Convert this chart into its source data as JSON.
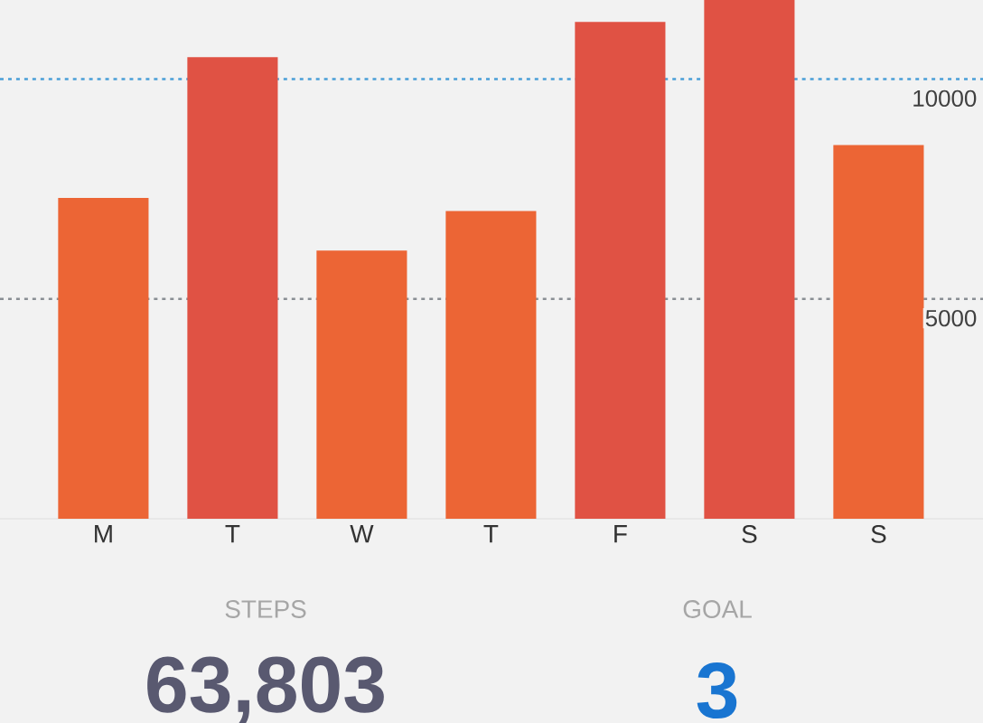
{
  "chart_data": {
    "type": "bar",
    "categories": [
      "M",
      "T",
      "W",
      "T",
      "F",
      "S",
      "S"
    ],
    "values": [
      7300,
      10500,
      6100,
      7000,
      11300,
      11800,
      8500
    ],
    "colors": [
      "#ec6535",
      "#e05244",
      "#ec6535",
      "#ec6535",
      "#e05244",
      "#e05244",
      "#ec6535"
    ],
    "ylim": [
      0,
      11800
    ],
    "tick_labels": "x",
    "ref_lines": [
      {
        "axis": "y",
        "value": 10000,
        "label": "10000",
        "color": "#4a9fd8",
        "line_style": "dotted"
      },
      {
        "axis": "y",
        "value": 5000,
        "label": "5000",
        "color": "#8a8f94",
        "line_style": "dotted"
      }
    ],
    "annotations": [
      "STEPS",
      "63,803",
      "GOAL",
      "3"
    ]
  }
}
